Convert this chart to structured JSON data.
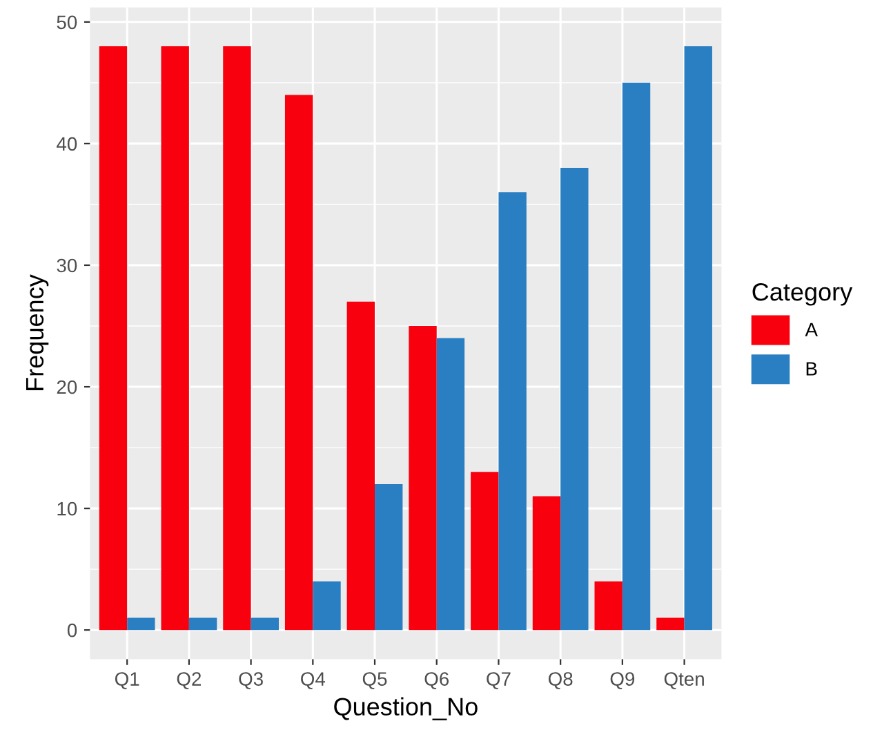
{
  "chart_data": {
    "type": "bar",
    "xlabel": "Question_No",
    "ylabel": "Frequency",
    "legend_title": "Category",
    "categories": [
      "Q1",
      "Q2",
      "Q3",
      "Q4",
      "Q5",
      "Q6",
      "Q7",
      "Q8",
      "Q9",
      "Qten"
    ],
    "series": [
      {
        "name": "A",
        "color": "#f8000d",
        "values": [
          48,
          48,
          48,
          44,
          27,
          25,
          13,
          11,
          4,
          1
        ]
      },
      {
        "name": "B",
        "color": "#2a7ec2",
        "values": [
          1,
          1,
          1,
          4,
          12,
          24,
          36,
          38,
          45,
          48
        ]
      }
    ],
    "ylim": [
      -2.4,
      51.2
    ],
    "yticks": [
      0,
      10,
      20,
      30,
      40,
      50
    ],
    "grid": true,
    "legend": "right"
  }
}
